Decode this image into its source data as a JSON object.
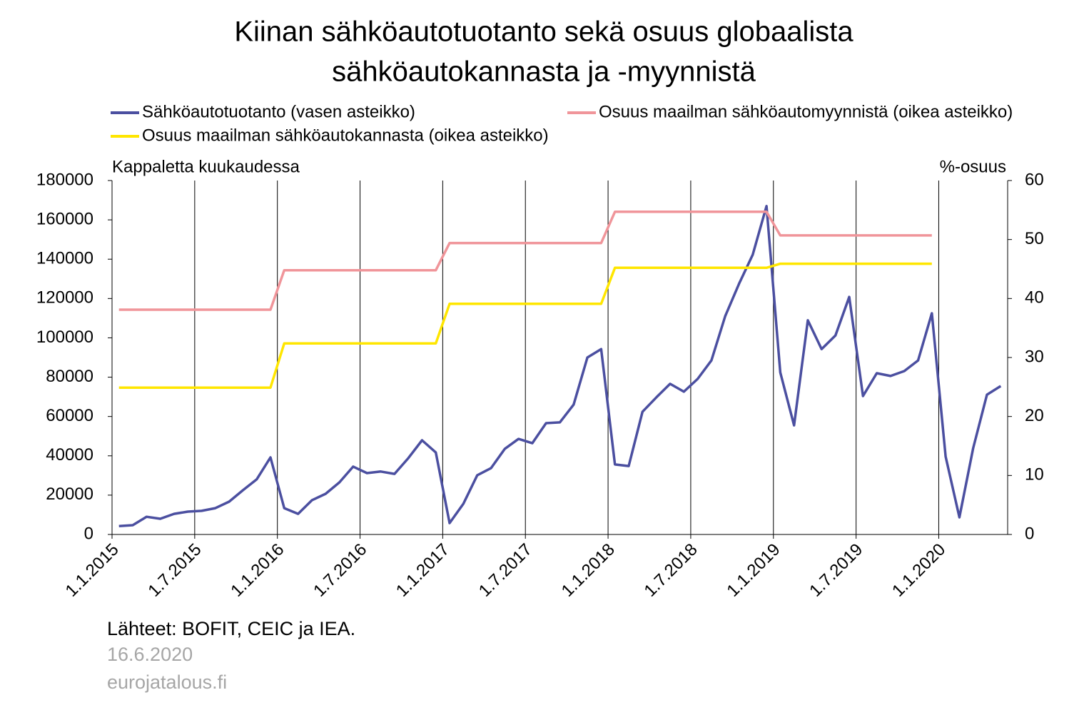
{
  "chart_data": {
    "type": "line",
    "title": [
      "Kiinan sähköautotuotanto sekä osuus globaalista",
      "sähköautokannasta ja -myynnistä"
    ],
    "y_label": "Kappaletta kuukaudessa",
    "y2_label": "%-osuus",
    "categories": [
      "1.1.2015",
      null,
      null,
      null,
      null,
      null,
      "1.7.2015",
      null,
      null,
      null,
      null,
      null,
      "1.1.2016",
      null,
      null,
      null,
      null,
      null,
      "1.7.2016",
      null,
      null,
      null,
      null,
      null,
      "1.1.2017",
      null,
      null,
      null,
      null,
      null,
      "1.7.2017",
      null,
      null,
      null,
      null,
      null,
      "1.1.2018",
      null,
      null,
      null,
      null,
      null,
      "1.7.2018",
      null,
      null,
      null,
      null,
      null,
      "1.1.2019",
      null,
      null,
      null,
      null,
      null,
      "1.7.2019",
      null,
      null,
      null,
      null,
      null,
      "1.1.2020",
      null,
      null,
      null,
      null
    ],
    "series": [
      {
        "name": "Sähköautotuotanto (vasen asteikko)",
        "color": "#4b4fa0",
        "axis": "y",
        "values": [
          4300,
          4700,
          9000,
          8000,
          10500,
          11600,
          12000,
          13400,
          16700,
          22500,
          28000,
          39200,
          13400,
          10500,
          17400,
          20700,
          26500,
          34500,
          31200,
          32000,
          30800,
          38800,
          47900,
          41700,
          5800,
          15600,
          30100,
          33700,
          43500,
          48600,
          46400,
          56600,
          57000,
          66000,
          90000,
          94300,
          35600,
          34800,
          62400,
          69700,
          76600,
          72600,
          79100,
          88500,
          111000,
          127400,
          142300,
          167000,
          82400,
          55500,
          108900,
          94300,
          101200,
          120800,
          70400,
          82000,
          80600,
          83100,
          88500,
          112500,
          39600,
          8700,
          43900,
          71100,
          75500
        ]
      },
      {
        "name": "Osuus maailman sähköautomyynnistä (oikea asteikko)",
        "color": "#f0959a",
        "axis": "y2",
        "values": [
          38.1,
          38.1,
          38.1,
          38.1,
          38.1,
          38.1,
          38.1,
          38.1,
          38.1,
          38.1,
          38.1,
          38.1,
          44.8,
          44.8,
          44.8,
          44.8,
          44.8,
          44.8,
          44.8,
          44.8,
          44.8,
          44.8,
          44.8,
          44.8,
          49.4,
          49.4,
          49.4,
          49.4,
          49.4,
          49.4,
          49.4,
          49.4,
          49.4,
          49.4,
          49.4,
          49.4,
          54.7,
          54.7,
          54.7,
          54.7,
          54.7,
          54.7,
          54.7,
          54.7,
          54.7,
          54.7,
          54.7,
          54.7,
          50.7,
          50.7,
          50.7,
          50.7,
          50.7,
          50.7,
          50.7,
          50.7,
          50.7,
          50.7,
          50.7,
          50.7,
          null,
          null,
          null,
          null,
          null
        ]
      },
      {
        "name": "Osuus maailman sähköautokannasta (oikea asteikko)",
        "color": "#ffe600",
        "axis": "y2",
        "values": [
          24.9,
          24.9,
          24.9,
          24.9,
          24.9,
          24.9,
          24.9,
          24.9,
          24.9,
          24.9,
          24.9,
          24.9,
          32.4,
          32.4,
          32.4,
          32.4,
          32.4,
          32.4,
          32.4,
          32.4,
          32.4,
          32.4,
          32.4,
          32.4,
          39.1,
          39.1,
          39.1,
          39.1,
          39.1,
          39.1,
          39.1,
          39.1,
          39.1,
          39.1,
          39.1,
          39.1,
          45.2,
          45.2,
          45.2,
          45.2,
          45.2,
          45.2,
          45.2,
          45.2,
          45.2,
          45.2,
          45.2,
          45.2,
          45.9,
          45.9,
          45.9,
          45.9,
          45.9,
          45.9,
          45.9,
          45.9,
          45.9,
          45.9,
          45.9,
          45.9,
          null,
          null,
          null,
          null,
          null
        ]
      }
    ],
    "ylim": [
      0,
      180000
    ],
    "yticks": [
      0,
      20000,
      40000,
      60000,
      80000,
      100000,
      120000,
      140000,
      160000,
      180000
    ],
    "y2lim": [
      0,
      60
    ],
    "y2ticks": [
      0,
      10,
      20,
      30,
      40,
      50,
      60
    ],
    "sources": "Lähteet: BOFIT, CEIC ja IEA.",
    "date": "16.6.2020",
    "site": "eurojatalous.fi"
  }
}
